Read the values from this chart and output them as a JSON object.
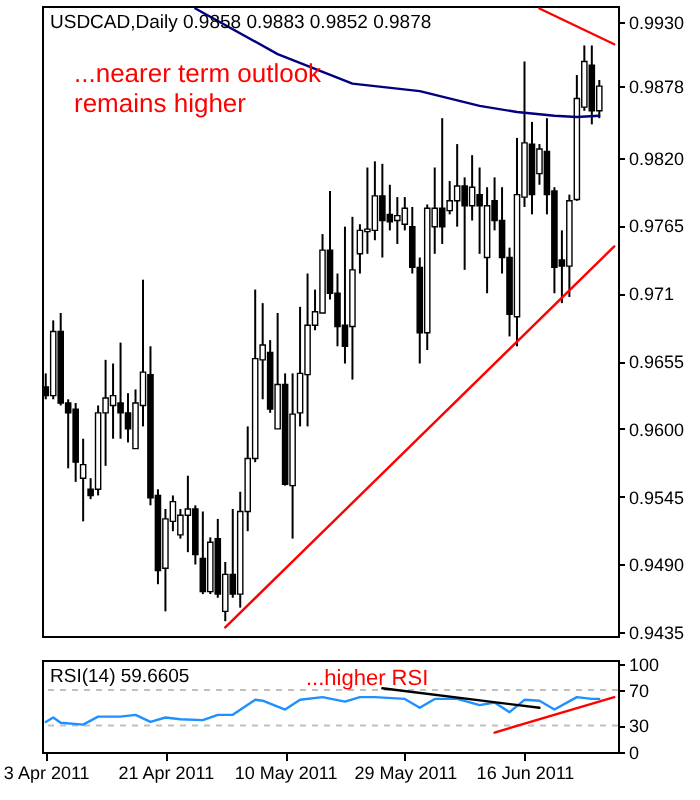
{
  "chart_data": [
    {
      "type": "candlestick",
      "title": "USDCAD,Daily 0.9858 0.9883 0.9852 0.9878",
      "annotations": [
        "...nearer term outlook\nremains higher"
      ],
      "categories": [
        null,
        null,
        null,
        null,
        null,
        null,
        null,
        null,
        null,
        null,
        null,
        null,
        null,
        null,
        null,
        null,
        null,
        null,
        null,
        null,
        null,
        null,
        null,
        null,
        null,
        null,
        null,
        null,
        null,
        null,
        null,
        null,
        null,
        null,
        null,
        null,
        null,
        null,
        null,
        null,
        null,
        null,
        null,
        null,
        null,
        null,
        null,
        null,
        null,
        null,
        null,
        null,
        null,
        null,
        null,
        null,
        null,
        null,
        null,
        null,
        null,
        null,
        null,
        null,
        null,
        null,
        null,
        null,
        null,
        null,
        null,
        null,
        null,
        null,
        null,
        null,
        null
      ],
      "ohlc": [
        [
          0.9634,
          0.9645,
          0.9624,
          0.9627
        ],
        [
          0.9627,
          0.9688,
          0.9624,
          0.9679
        ],
        [
          0.9679,
          0.9694,
          0.9619,
          0.9621
        ],
        [
          0.9621,
          0.9624,
          0.9568,
          0.9613
        ],
        [
          0.9616,
          0.9621,
          0.9557,
          0.9573
        ],
        [
          0.956,
          0.9592,
          0.9525,
          0.9571
        ],
        [
          0.9551,
          0.956,
          0.9543,
          0.9546
        ],
        [
          0.9551,
          0.9619,
          0.9546,
          0.9613
        ],
        [
          0.9613,
          0.9656,
          0.957,
          0.9625
        ],
        [
          0.9619,
          0.9653,
          0.9592,
          0.9627
        ],
        [
          0.9621,
          0.967,
          0.9592,
          0.9613
        ],
        [
          0.9613,
          0.9629,
          0.9589,
          0.96
        ],
        [
          0.9584,
          0.9632,
          0.9584,
          0.9621
        ],
        [
          0.9619,
          0.9721,
          0.9602,
          0.9646
        ],
        [
          0.9644,
          0.9667,
          0.9538,
          0.9544
        ],
        [
          0.9546,
          0.9551,
          0.9474,
          0.9485
        ],
        [
          0.9487,
          0.9535,
          0.9452,
          0.9527
        ],
        [
          0.9525,
          0.9546,
          0.9517,
          0.9541
        ],
        [
          0.9514,
          0.9535,
          0.9511,
          0.953
        ],
        [
          0.953,
          0.9562,
          0.95,
          0.9535
        ],
        [
          0.9535,
          0.9538,
          0.949,
          0.9498
        ],
        [
          0.9495,
          0.9533,
          0.9466,
          0.9468
        ],
        [
          0.9468,
          0.9512,
          0.9466,
          0.9508
        ],
        [
          0.9511,
          0.9527,
          0.9463,
          0.9466
        ],
        [
          0.9452,
          0.9492,
          0.9444,
          0.9482
        ],
        [
          0.9482,
          0.9535,
          0.9463,
          0.9466
        ],
        [
          0.9466,
          0.9549,
          0.9455,
          0.9533
        ],
        [
          0.9533,
          0.9602,
          0.9517,
          0.9576
        ],
        [
          0.9576,
          0.9713,
          0.9573,
          0.9657
        ],
        [
          0.9656,
          0.9702,
          0.9624,
          0.9668
        ],
        [
          0.9662,
          0.9672,
          0.9613,
          0.9616
        ],
        [
          0.96,
          0.9694,
          0.96,
          0.9636
        ],
        [
          0.9636,
          0.9645,
          0.9554,
          0.9555
        ],
        [
          0.9554,
          0.9645,
          0.9511,
          0.9612
        ],
        [
          0.9613,
          0.9699,
          0.9602,
          0.9645
        ],
        [
          0.9644,
          0.9726,
          0.9602,
          0.9684
        ],
        [
          0.9684,
          0.9713,
          0.968,
          0.9695
        ],
        [
          0.9694,
          0.9758,
          0.9694,
          0.9745
        ],
        [
          0.9745,
          0.9793,
          0.9705,
          0.971
        ],
        [
          0.971,
          0.9726,
          0.9667,
          0.9683
        ],
        [
          0.9684,
          0.9764,
          0.9653,
          0.9667
        ],
        [
          0.9683,
          0.9772,
          0.964,
          0.9729
        ],
        [
          0.9742,
          0.9766,
          0.9726,
          0.9761
        ],
        [
          0.976,
          0.9812,
          0.9742,
          0.9762
        ],
        [
          0.9761,
          0.9817,
          0.9753,
          0.9789
        ],
        [
          0.9789,
          0.9815,
          0.9739,
          0.9769
        ],
        [
          0.9774,
          0.9798,
          0.9761,
          0.9768
        ],
        [
          0.9769,
          0.9788,
          0.975,
          0.9773
        ],
        [
          0.9766,
          0.9788,
          0.9761,
          0.9779
        ],
        [
          0.9764,
          0.978,
          0.9726,
          0.9731
        ],
        [
          0.9731,
          0.9739,
          0.9653,
          0.9678
        ],
        [
          0.9678,
          0.9782,
          0.9664,
          0.9779
        ],
        [
          0.9764,
          0.9812,
          0.9742,
          0.9779
        ],
        [
          0.9779,
          0.9852,
          0.975,
          0.9764
        ],
        [
          0.9777,
          0.9801,
          0.9774,
          0.9785
        ],
        [
          0.9785,
          0.9831,
          0.9764,
          0.9797
        ],
        [
          0.9797,
          0.9804,
          0.9729,
          0.9781
        ],
        [
          0.9781,
          0.9822,
          0.9769,
          0.9796
        ],
        [
          0.979,
          0.9812,
          0.9742,
          0.9781
        ],
        [
          0.9739,
          0.9796,
          0.971,
          0.9781
        ],
        [
          0.9785,
          0.9804,
          0.9761,
          0.9769
        ],
        [
          0.9769,
          0.9796,
          0.9726,
          0.9739
        ],
        [
          0.9739,
          0.9747,
          0.9675,
          0.9693
        ],
        [
          0.9691,
          0.9836,
          0.9667,
          0.979
        ],
        [
          0.9788,
          0.9898,
          0.978,
          0.9832
        ],
        [
          0.9831,
          0.9849,
          0.9774,
          0.979
        ],
        [
          0.9807,
          0.9831,
          0.9798,
          0.9827
        ],
        [
          0.9825,
          0.9852,
          0.9774,
          0.979
        ],
        [
          0.9793,
          0.9796,
          0.971,
          0.9731
        ],
        [
          0.9737,
          0.9761,
          0.9702,
          0.9732
        ],
        [
          0.9732,
          0.979,
          0.9707,
          0.9785
        ],
        [
          0.9786,
          0.9887,
          0.9785,
          0.9868
        ],
        [
          0.9861,
          0.9911,
          0.9858,
          0.9898
        ],
        [
          0.9895,
          0.9911,
          0.9847,
          0.9858
        ],
        [
          0.9858,
          0.9883,
          0.9852,
          0.9878
        ],
        null,
        null
      ],
      "series": [
        {
          "type": "line",
          "color": "#000080",
          "values": [
            null,
            null,
            null,
            null,
            null,
            null,
            null,
            null,
            null,
            null,
            null,
            null,
            null,
            null,
            null,
            null,
            null,
            null,
            null,
            null,
            0.9941,
            null,
            null,
            null,
            null,
            null,
            null,
            null,
            null,
            null,
            null,
            0.9904,
            null,
            null,
            null,
            null,
            null,
            null,
            null,
            null,
            null,
            0.988,
            null,
            null,
            null,
            null,
            null,
            null,
            null,
            null,
            0.9874,
            null,
            null,
            null,
            null,
            null,
            null,
            null,
            0.9862,
            null,
            null,
            null,
            null,
            0.9857,
            null,
            null,
            null,
            null,
            0.9854,
            null,
            null,
            0.9853,
            null,
            null,
            0.9854,
            null,
            null
          ]
        },
        {
          "type": "line",
          "color": "#ff0000",
          "values": [
            null,
            null,
            null,
            null,
            null,
            null,
            null,
            null,
            null,
            null,
            null,
            null,
            null,
            null,
            null,
            null,
            null,
            null,
            null,
            null,
            null,
            null,
            null,
            null,
            0.9439,
            null,
            null,
            null,
            null,
            null,
            null,
            null,
            null,
            null,
            null,
            null,
            null,
            null,
            null,
            null,
            null,
            null,
            null,
            null,
            null,
            null,
            null,
            null,
            null,
            null,
            null,
            null,
            null,
            null,
            null,
            null,
            null,
            null,
            null,
            null,
            null,
            null,
            null,
            null,
            null,
            null,
            null,
            null,
            null,
            null,
            null,
            null,
            null,
            null,
            null,
            null,
            0.9748
          ]
        },
        {
          "type": "line",
          "color": "#ff0000",
          "values": [
            null,
            null,
            null,
            null,
            null,
            null,
            null,
            null,
            null,
            null,
            null,
            null,
            null,
            null,
            null,
            null,
            null,
            null,
            null,
            null,
            null,
            null,
            null,
            null,
            null,
            null,
            null,
            null,
            null,
            null,
            null,
            null,
            null,
            null,
            null,
            null,
            null,
            null,
            null,
            null,
            null,
            null,
            null,
            null,
            null,
            null,
            null,
            null,
            null,
            null,
            null,
            null,
            null,
            null,
            null,
            null,
            null,
            null,
            null,
            null,
            null,
            null,
            null,
            null,
            null,
            null,
            0.9941,
            null,
            null,
            null,
            null,
            null,
            null,
            null,
            null,
            null,
            0.9912
          ]
        }
      ],
      "ylim": [
        0.9432,
        0.9943
      ],
      "yticks": [
        {
          "value": 0.993,
          "label": "0.9930"
        },
        0.9878,
        {
          "value": 0.982,
          "label": "0.9820"
        },
        0.9765,
        0.971,
        0.9655,
        {
          "value": 0.96,
          "label": "0.9600"
        },
        0.9545,
        {
          "value": 0.949,
          "label": "0.9490"
        },
        0.9435
      ],
      "tick_labels": "y"
    },
    {
      "type": "line",
      "title": "RSI(14) 59.6605",
      "annotations": [
        {
          "text": "...higher RSI",
          "y": 82
        }
      ],
      "categories": [
        "3 Apr 2011",
        null,
        null,
        null,
        null,
        null,
        null,
        null,
        null,
        null,
        null,
        null,
        null,
        null,
        null,
        null,
        "21 Apr 2011",
        null,
        null,
        null,
        null,
        null,
        null,
        null,
        null,
        null,
        null,
        null,
        null,
        null,
        null,
        null,
        "10 May 2011",
        null,
        null,
        null,
        null,
        null,
        null,
        null,
        null,
        null,
        null,
        null,
        null,
        null,
        null,
        null,
        "29 May 2011",
        null,
        null,
        null,
        null,
        null,
        null,
        null,
        null,
        null,
        null,
        null,
        null,
        null,
        null,
        null,
        "16 Jun 2011",
        null,
        null,
        null,
        null,
        null,
        null,
        null,
        null,
        null,
        null,
        null,
        null
      ],
      "series": [
        {
          "color": "#1e90ff",
          "values": [
            34,
            39,
            33,
            null,
            null,
            31,
            null,
            40,
            null,
            null,
            40,
            null,
            42,
            null,
            34,
            null,
            39,
            null,
            37,
            null,
            null,
            36,
            null,
            42,
            null,
            42,
            null,
            null,
            59,
            58,
            null,
            null,
            48,
            null,
            59,
            null,
            null,
            62,
            null,
            null,
            57,
            null,
            62,
            null,
            62,
            null,
            null,
            null,
            60,
            null,
            50,
            null,
            60,
            null,
            null,
            60,
            null,
            null,
            53,
            null,
            56,
            null,
            45,
            null,
            59,
            null,
            58,
            null,
            48,
            null,
            null,
            62,
            null,
            60,
            60,
            null,
            null
          ]
        },
        {
          "color": "#000000",
          "values": [
            null,
            null,
            null,
            null,
            null,
            null,
            null,
            null,
            null,
            null,
            null,
            null,
            null,
            null,
            null,
            null,
            null,
            null,
            null,
            null,
            null,
            null,
            null,
            null,
            null,
            null,
            null,
            null,
            null,
            null,
            null,
            null,
            null,
            null,
            null,
            null,
            null,
            null,
            null,
            null,
            null,
            null,
            null,
            null,
            null,
            72,
            null,
            null,
            null,
            null,
            null,
            null,
            null,
            null,
            null,
            null,
            null,
            null,
            null,
            null,
            null,
            null,
            null,
            null,
            null,
            null,
            50,
            null,
            null,
            null,
            null,
            null,
            null,
            null,
            null,
            null,
            null
          ]
        },
        {
          "color": "#ff0000",
          "values": [
            null,
            null,
            null,
            null,
            null,
            null,
            null,
            null,
            null,
            null,
            null,
            null,
            null,
            null,
            null,
            null,
            null,
            null,
            null,
            null,
            null,
            null,
            null,
            null,
            null,
            null,
            null,
            null,
            null,
            null,
            null,
            null,
            null,
            null,
            null,
            null,
            null,
            null,
            null,
            null,
            null,
            null,
            null,
            null,
            null,
            null,
            null,
            null,
            null,
            null,
            null,
            null,
            null,
            null,
            null,
            null,
            null,
            null,
            null,
            null,
            22,
            null,
            null,
            null,
            null,
            null,
            null,
            null,
            null,
            null,
            null,
            null,
            null,
            null,
            null,
            null,
            62
          ]
        }
      ],
      "ref_lines": [
        {
          "axis": "y",
          "value": 70,
          "color": "#c0c0c0",
          "line_style": "dashed"
        },
        {
          "axis": "y",
          "value": 30,
          "color": "#c0c0c0",
          "line_style": "dashed"
        }
      ],
      "ylim": [
        0,
        104
      ],
      "yticks": [
        0,
        30,
        70,
        100
      ]
    }
  ]
}
